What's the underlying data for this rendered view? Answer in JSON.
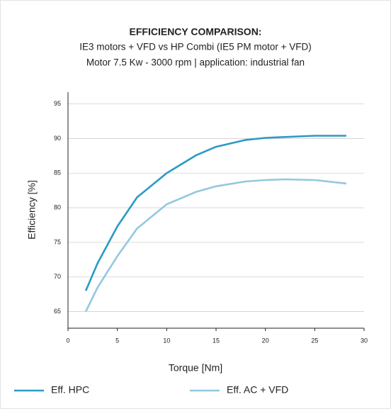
{
  "chart_data": {
    "type": "line",
    "title": "EFFICIENCY COMPARISON:",
    "subtitle": [
      "IE3 motors + VFD vs HP Combi (IE5 PM motor + VFD)",
      "Motor 7.5 Kw - 3000 rpm | application: industrial fan"
    ],
    "x_label": "Torque [Nm]",
    "y_label": "Efficiency [%]",
    "xlim": [
      0,
      30
    ],
    "xticks": [
      0,
      5,
      10,
      15,
      20,
      25,
      30
    ],
    "ylim": [
      62.6,
      96.7
    ],
    "yticks": [
      65,
      70,
      75,
      80,
      85,
      90,
      95
    ],
    "grid": true,
    "legend": "bottom",
    "series": [
      {
        "name": "Eff. HPC",
        "color": "#2b9ac4",
        "x": [
          1.8,
          3,
          5,
          7,
          10,
          13,
          15,
          18,
          20,
          25,
          28.2
        ],
        "values": [
          68,
          72,
          77.3,
          81.5,
          85,
          87.6,
          88.8,
          89.8,
          90.1,
          90.4,
          90.4
        ]
      },
      {
        "name": "Eff. AC + VFD",
        "color": "#93c8df",
        "x": [
          1.8,
          3,
          5,
          7,
          10,
          13,
          15,
          18,
          20,
          22,
          25,
          28.2
        ],
        "values": [
          65,
          68.5,
          73,
          77,
          80.5,
          82.3,
          83.1,
          83.8,
          84,
          84.1,
          84,
          83.5
        ]
      }
    ]
  }
}
